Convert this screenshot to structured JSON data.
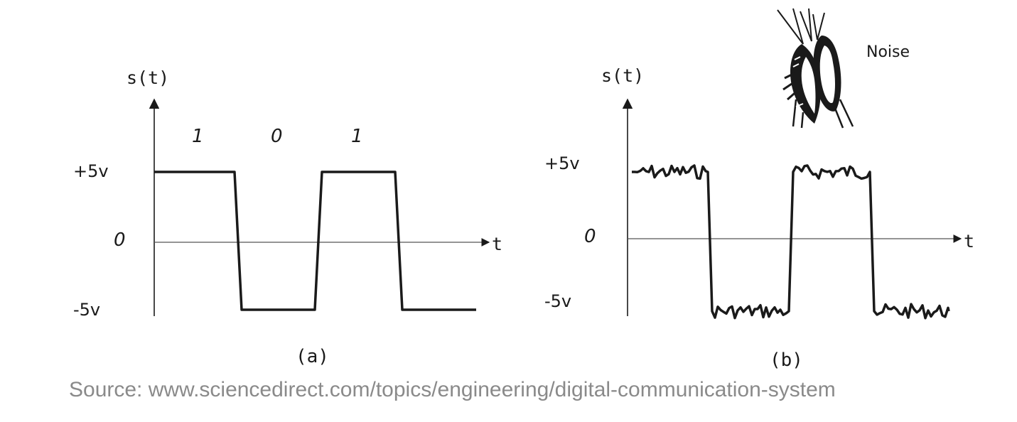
{
  "figure": {
    "panel_a": {
      "y_axis_label": "s(t)",
      "x_axis_label": "t",
      "level_labels": {
        "high": "+5v",
        "zero": "0",
        "low": "-5v"
      },
      "bit_labels": [
        "1",
        "0",
        "1"
      ],
      "caption": "(a)"
    },
    "panel_b": {
      "y_axis_label": "s(t)",
      "x_axis_label": "t",
      "level_labels": {
        "high": "+5v",
        "zero": "0",
        "low": "-5v"
      },
      "caption": "(b)",
      "noise_label": "Noise"
    },
    "source_text": "Source: www.sciencedirect.com/topics/engineering/digital-communication-system"
  },
  "chart_data": [
    {
      "type": "line",
      "title": "",
      "xlabel": "t",
      "ylabel": "s(t)",
      "ylim": [
        -5,
        5
      ],
      "y_ticks": [
        "+5v",
        "0",
        "-5v"
      ],
      "bits": [
        "1",
        "0",
        "1"
      ],
      "series": [
        {
          "x": [
            0,
            1,
            1,
            2,
            2,
            3,
            3,
            4
          ],
          "y": [
            5,
            5,
            -5,
            -5,
            5,
            5,
            -5,
            -5
          ]
        }
      ]
    },
    {
      "type": "line",
      "title": "",
      "xlabel": "t",
      "ylabel": "s(t)",
      "ylim": [
        -5,
        5
      ],
      "y_ticks": [
        "+5v",
        "0",
        "-5v"
      ],
      "annotations": [
        "Noise"
      ],
      "series": [
        {
          "x": [
            0,
            1,
            1,
            2,
            2,
            3,
            3,
            4
          ],
          "y": [
            5,
            5,
            -5,
            -5,
            5,
            5,
            -5,
            -5
          ]
        }
      ]
    }
  ],
  "colors": {
    "ink": "#1a1a1a",
    "axis": "#555555",
    "source_text": "#8a8a8a"
  },
  "icons": {
    "noise_illustration": "ear-covering-head-icon"
  }
}
